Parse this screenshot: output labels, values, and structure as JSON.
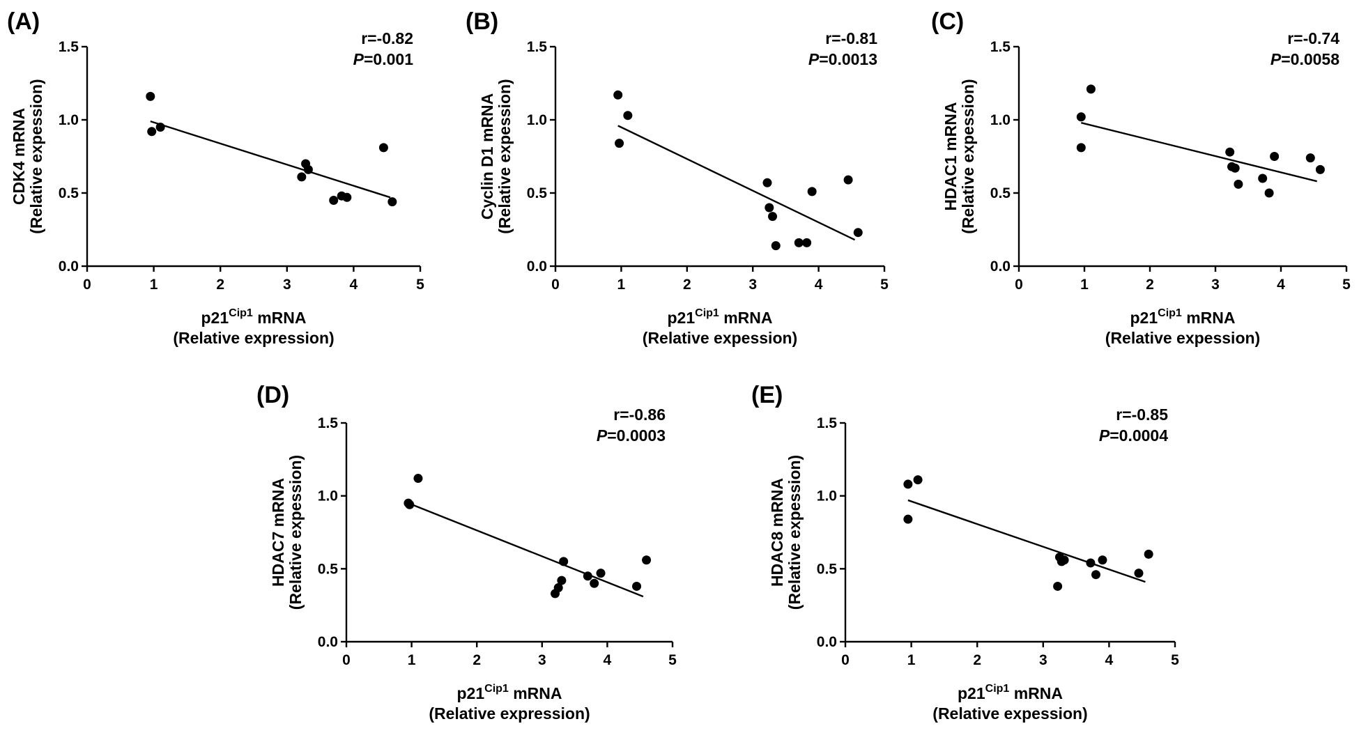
{
  "chart_data": [
    {
      "type": "scatter",
      "panel": "(A)",
      "title": "",
      "xlabel": "p21",
      "xlabel_sup": "Cip1",
      "xlabel_suffix": " mRNA",
      "xlabel_line2": "(Relative expression)",
      "ylabel": "CDK4 mRNA",
      "ylabel_line2": "(Relative expession)",
      "xlim": [
        0,
        5
      ],
      "ylim": [
        0,
        1.5
      ],
      "xticks": [
        "0",
        "1",
        "2",
        "3",
        "4",
        "5"
      ],
      "yticks": [
        "0.0",
        "0.5",
        "1.0",
        "1.5"
      ],
      "r_text": "r=-0.82",
      "p_label": "P",
      "p_value": "=0.001",
      "points": [
        {
          "x": 0.95,
          "y": 1.16
        },
        {
          "x": 0.97,
          "y": 0.92
        },
        {
          "x": 1.1,
          "y": 0.95
        },
        {
          "x": 3.22,
          "y": 0.61
        },
        {
          "x": 3.28,
          "y": 0.7
        },
        {
          "x": 3.32,
          "y": 0.66
        },
        {
          "x": 3.7,
          "y": 0.45
        },
        {
          "x": 3.82,
          "y": 0.48
        },
        {
          "x": 3.9,
          "y": 0.47
        },
        {
          "x": 4.45,
          "y": 0.81
        },
        {
          "x": 4.58,
          "y": 0.44
        }
      ],
      "fit": {
        "x": [
          0.95,
          4.55
        ],
        "y": [
          0.99,
          0.47
        ]
      }
    },
    {
      "type": "scatter",
      "panel": "(B)",
      "title": "",
      "xlabel": "p21",
      "xlabel_sup": "Cip1",
      "xlabel_suffix": " mRNA",
      "xlabel_line2": "(Relative expession)",
      "ylabel": "Cyclin D1 mRNA",
      "ylabel_line2": "(Relative expession)",
      "xlim": [
        0,
        5
      ],
      "ylim": [
        0,
        1.5
      ],
      "xticks": [
        "0",
        "1",
        "2",
        "3",
        "4",
        "5"
      ],
      "yticks": [
        "0.0",
        "0.5",
        "1.0",
        "1.5"
      ],
      "r_text": "r=-0.81",
      "p_label": "P",
      "p_value": "=0.0013",
      "points": [
        {
          "x": 0.95,
          "y": 1.17
        },
        {
          "x": 0.97,
          "y": 0.84
        },
        {
          "x": 1.1,
          "y": 1.03
        },
        {
          "x": 3.22,
          "y": 0.57
        },
        {
          "x": 3.25,
          "y": 0.4
        },
        {
          "x": 3.3,
          "y": 0.34
        },
        {
          "x": 3.35,
          "y": 0.14
        },
        {
          "x": 3.7,
          "y": 0.16
        },
        {
          "x": 3.82,
          "y": 0.16
        },
        {
          "x": 3.9,
          "y": 0.51
        },
        {
          "x": 4.45,
          "y": 0.59
        },
        {
          "x": 4.6,
          "y": 0.23
        }
      ],
      "fit": {
        "x": [
          0.95,
          4.55
        ],
        "y": [
          0.96,
          0.18
        ]
      }
    },
    {
      "type": "scatter",
      "panel": "(C)",
      "title": "",
      "xlabel": "p21",
      "xlabel_sup": "Cip1",
      "xlabel_suffix": " mRNA",
      "xlabel_line2": "(Relative expession)",
      "ylabel": "HDAC1 mRNA",
      "ylabel_line2": "(Relative expession)",
      "xlim": [
        0,
        5
      ],
      "ylim": [
        0,
        1.5
      ],
      "xticks": [
        "0",
        "1",
        "2",
        "3",
        "4",
        "5"
      ],
      "yticks": [
        "0.0",
        "0.5",
        "1.0",
        "1.5"
      ],
      "r_text": "r=-0.74",
      "p_label": "P",
      "p_value": "=0.0058",
      "points": [
        {
          "x": 0.95,
          "y": 1.02
        },
        {
          "x": 0.95,
          "y": 0.81
        },
        {
          "x": 1.1,
          "y": 1.21
        },
        {
          "x": 3.22,
          "y": 0.78
        },
        {
          "x": 3.25,
          "y": 0.68
        },
        {
          "x": 3.3,
          "y": 0.67
        },
        {
          "x": 3.35,
          "y": 0.56
        },
        {
          "x": 3.72,
          "y": 0.6
        },
        {
          "x": 3.82,
          "y": 0.5
        },
        {
          "x": 3.9,
          "y": 0.75
        },
        {
          "x": 4.45,
          "y": 0.74
        },
        {
          "x": 4.6,
          "y": 0.66
        }
      ],
      "fit": {
        "x": [
          0.95,
          4.55
        ],
        "y": [
          0.98,
          0.58
        ]
      }
    },
    {
      "type": "scatter",
      "panel": "(D)",
      "title": "",
      "xlabel": "p21",
      "xlabel_sup": "Cip1",
      "xlabel_suffix": " mRNA",
      "xlabel_line2": "(Relative expression)",
      "ylabel": "HDAC7 mRNA",
      "ylabel_line2": "(Relative expession)",
      "xlim": [
        0,
        5
      ],
      "ylim": [
        0,
        1.5
      ],
      "xticks": [
        "0",
        "1",
        "2",
        "3",
        "4",
        "5"
      ],
      "yticks": [
        "0.0",
        "0.5",
        "1.0",
        "1.5"
      ],
      "r_text": "r=-0.86",
      "p_label": "P",
      "p_value": "=0.0003",
      "points": [
        {
          "x": 0.95,
          "y": 0.95
        },
        {
          "x": 0.97,
          "y": 0.94
        },
        {
          "x": 1.1,
          "y": 1.12
        },
        {
          "x": 3.2,
          "y": 0.33
        },
        {
          "x": 3.25,
          "y": 0.37
        },
        {
          "x": 3.3,
          "y": 0.42
        },
        {
          "x": 3.33,
          "y": 0.55
        },
        {
          "x": 3.7,
          "y": 0.45
        },
        {
          "x": 3.8,
          "y": 0.4
        },
        {
          "x": 3.9,
          "y": 0.47
        },
        {
          "x": 4.45,
          "y": 0.38
        },
        {
          "x": 4.6,
          "y": 0.56
        }
      ],
      "fit": {
        "x": [
          0.95,
          4.55
        ],
        "y": [
          0.95,
          0.31
        ]
      }
    },
    {
      "type": "scatter",
      "panel": "(E)",
      "title": "",
      "xlabel": "p21",
      "xlabel_sup": "Cip1",
      "xlabel_suffix": " mRNA",
      "xlabel_line2": "(Relative expession)",
      "ylabel": "HDAC8 mRNA",
      "ylabel_line2": "(Relative expession)",
      "xlim": [
        0,
        5
      ],
      "ylim": [
        0,
        1.5
      ],
      "xticks": [
        "0",
        "1",
        "2",
        "3",
        "4",
        "5"
      ],
      "yticks": [
        "0.0",
        "0.5",
        "1.0",
        "1.5"
      ],
      "r_text": "r=-0.85",
      "p_label": "P",
      "p_value": "=0.0004",
      "points": [
        {
          "x": 0.95,
          "y": 1.08
        },
        {
          "x": 0.95,
          "y": 0.84
        },
        {
          "x": 1.1,
          "y": 1.11
        },
        {
          "x": 3.22,
          "y": 0.38
        },
        {
          "x": 3.25,
          "y": 0.58
        },
        {
          "x": 3.28,
          "y": 0.55
        },
        {
          "x": 3.32,
          "y": 0.56
        },
        {
          "x": 3.72,
          "y": 0.54
        },
        {
          "x": 3.8,
          "y": 0.46
        },
        {
          "x": 3.9,
          "y": 0.56
        },
        {
          "x": 4.45,
          "y": 0.47
        },
        {
          "x": 4.6,
          "y": 0.6
        }
      ],
      "fit": {
        "x": [
          0.95,
          4.55
        ],
        "y": [
          0.97,
          0.41
        ]
      }
    }
  ]
}
